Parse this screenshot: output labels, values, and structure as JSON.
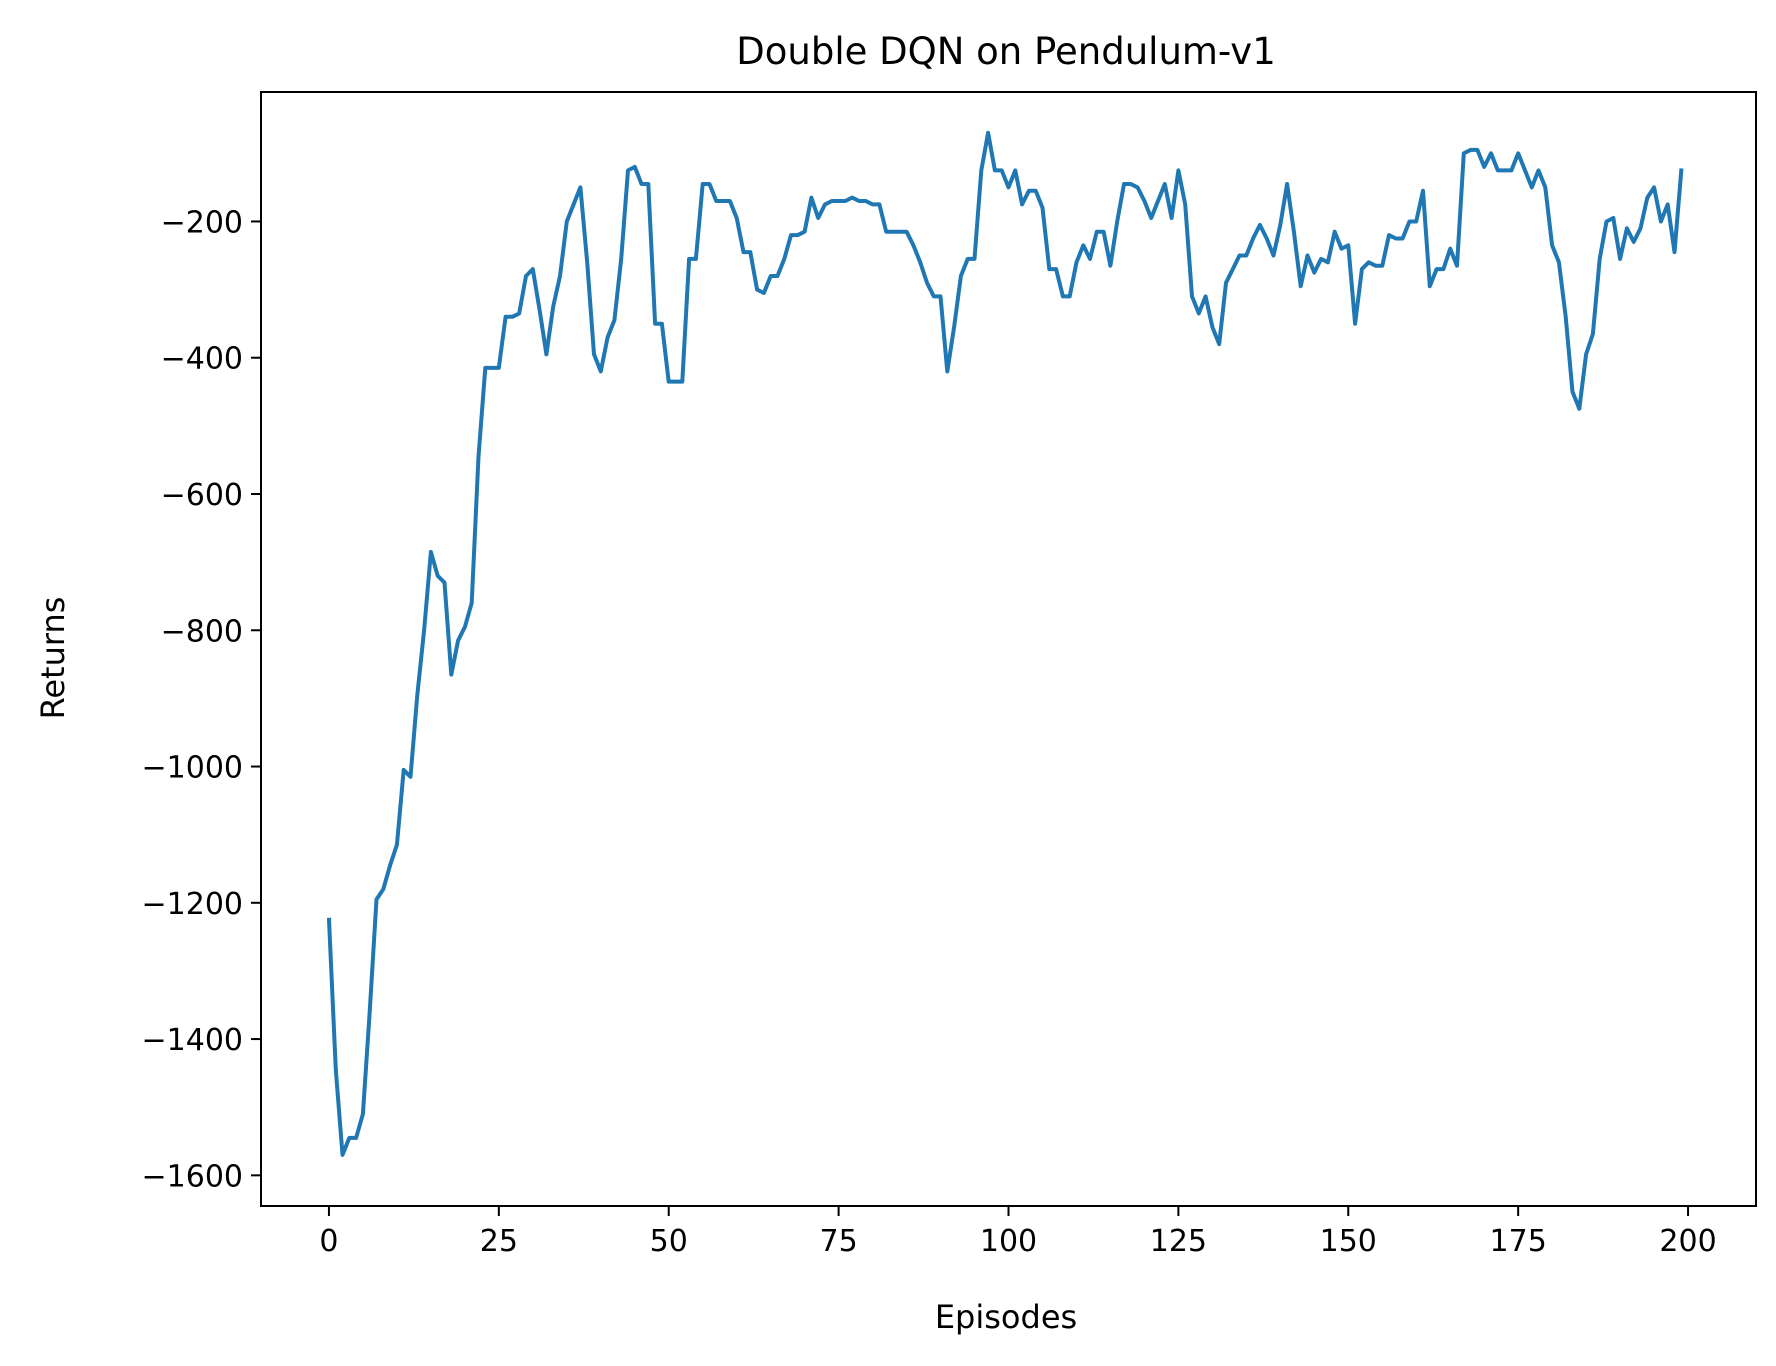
{
  "chart_data": {
    "type": "line",
    "title": "Double DQN on Pendulum-v1",
    "xlabel": "Episodes",
    "ylabel": "Returns",
    "xlim": [
      -10,
      210
    ],
    "ylim": [
      -1645,
      -10
    ],
    "grid": false,
    "legend": "none",
    "x_ticks": [
      0,
      25,
      50,
      75,
      100,
      125,
      150,
      175,
      200
    ],
    "x_tick_labels": [
      "0",
      "25",
      "50",
      "75",
      "100",
      "125",
      "150",
      "175",
      "200"
    ],
    "y_ticks": [
      -200,
      -400,
      -600,
      -800,
      -1000,
      -1200,
      -1400,
      -1600
    ],
    "y_tick_labels": [
      "−200",
      "−400",
      "−600",
      "−800",
      "−1000",
      "−1200",
      "−1400",
      "−1600"
    ],
    "series": [
      {
        "color": "#1f77b4",
        "x": [
          0,
          1,
          2,
          3,
          4,
          5,
          6,
          7,
          8,
          9,
          10,
          11,
          12,
          13,
          14,
          15,
          16,
          17,
          18,
          19,
          20,
          21,
          22,
          23,
          24,
          25,
          26,
          27,
          28,
          29,
          30,
          31,
          32,
          33,
          34,
          35,
          36,
          37,
          38,
          39,
          40,
          41,
          42,
          43,
          44,
          45,
          46,
          47,
          48,
          49,
          50,
          51,
          52,
          53,
          54,
          55,
          56,
          57,
          58,
          59,
          60,
          61,
          62,
          63,
          64,
          65,
          66,
          67,
          68,
          69,
          70,
          71,
          72,
          73,
          74,
          75,
          76,
          77,
          78,
          79,
          80,
          81,
          82,
          83,
          84,
          85,
          86,
          87,
          88,
          89,
          90,
          91,
          92,
          93,
          94,
          95,
          96,
          97,
          98,
          99,
          100,
          101,
          102,
          103,
          104,
          105,
          106,
          107,
          108,
          109,
          110,
          111,
          112,
          113,
          114,
          115,
          116,
          117,
          118,
          119,
          120,
          121,
          122,
          123,
          124,
          125,
          126,
          127,
          128,
          129,
          130,
          131,
          132,
          133,
          134,
          135,
          136,
          137,
          138,
          139,
          140,
          141,
          142,
          143,
          144,
          145,
          146,
          147,
          148,
          149,
          150,
          151,
          152,
          153,
          154,
          155,
          156,
          157,
          158,
          159,
          160,
          161,
          162,
          163,
          164,
          165,
          166,
          167,
          168,
          169,
          170,
          171,
          172,
          173,
          174,
          175,
          176,
          177,
          178,
          179,
          180,
          181,
          182,
          183,
          184,
          185,
          186,
          187,
          188,
          189,
          190,
          191,
          192,
          193,
          194,
          195,
          196,
          197,
          198,
          199
        ],
        "values": [
          -1225,
          -1445,
          -1570,
          -1545,
          -1545,
          -1510,
          -1360,
          -1195,
          -1180,
          -1145,
          -1115,
          -1005,
          -1015,
          -895,
          -800,
          -685,
          -720,
          -730,
          -865,
          -815,
          -795,
          -760,
          -545,
          -415,
          -415,
          -415,
          -340,
          -340,
          -335,
          -280,
          -270,
          -330,
          -395,
          -325,
          -280,
          -200,
          -175,
          -150,
          -260,
          -395,
          -420,
          -370,
          -345,
          -255,
          -125,
          -120,
          -145,
          -145,
          -350,
          -350,
          -435,
          -435,
          -435,
          -255,
          -255,
          -145,
          -145,
          -170,
          -170,
          -170,
          -195,
          -245,
          -245,
          -300,
          -305,
          -280,
          -280,
          -255,
          -220,
          -220,
          -215,
          -165,
          -195,
          -175,
          -170,
          -170,
          -170,
          -165,
          -170,
          -170,
          -175,
          -175,
          -215,
          -215,
          -215,
          -215,
          -235,
          -260,
          -290,
          -310,
          -310,
          -420,
          -355,
          -280,
          -255,
          -255,
          -125,
          -70,
          -125,
          -125,
          -150,
          -125,
          -175,
          -155,
          -155,
          -180,
          -270,
          -270,
          -310,
          -310,
          -260,
          -235,
          -255,
          -215,
          -215,
          -265,
          -200,
          -145,
          -145,
          -150,
          -170,
          -195,
          -170,
          -145,
          -195,
          -125,
          -175,
          -310,
          -335,
          -310,
          -355,
          -380,
          -290,
          -270,
          -250,
          -250,
          -225,
          -205,
          -225,
          -250,
          -205,
          -145,
          -215,
          -295,
          -250,
          -275,
          -255,
          -260,
          -215,
          -240,
          -235,
          -350,
          -270,
          -260,
          -265,
          -265,
          -220,
          -225,
          -225,
          -200,
          -200,
          -155,
          -295,
          -270,
          -270,
          -240,
          -265,
          -100,
          -95,
          -95,
          -120,
          -100,
          -125,
          -125,
          -125,
          -100,
          -125,
          -150,
          -125,
          -150,
          -235,
          -260,
          -340,
          -450,
          -475,
          -395,
          -365,
          -255,
          -200,
          -195,
          -255,
          -210,
          -230,
          -210,
          -165,
          -150,
          -200,
          -175,
          -245,
          -125
        ]
      }
    ]
  }
}
